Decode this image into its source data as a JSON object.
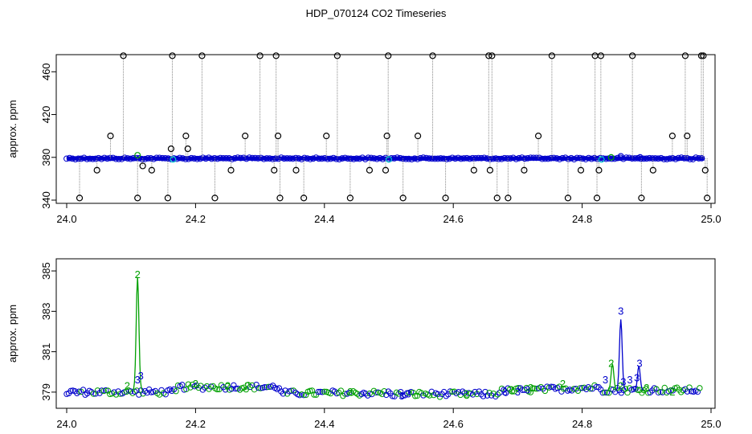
{
  "title": "HDP_070124  CO2 Timeseries",
  "chart_data": [
    {
      "type": "scatter",
      "title": "",
      "xlabel": "",
      "ylabel": "approx. ppm",
      "xlim": [
        24.0,
        25.0
      ],
      "ylim": [
        337,
        476
      ],
      "xticks": [
        24.0,
        24.2,
        24.4,
        24.6,
        24.8,
        25.0
      ],
      "xtick_labels": [
        "24.0",
        "24.2",
        "24.4",
        "24.6",
        "24.8",
        "25.0"
      ],
      "yticks": [
        340,
        380,
        420,
        460
      ],
      "ytick_labels": [
        "340",
        "380",
        "420",
        "460"
      ],
      "grid": false,
      "legend": "none",
      "baseline": 379,
      "colors": {
        "baseline": "#0000cc",
        "spike": "#000000",
        "sample": "#00a000",
        "cyan": "#00cccc",
        "trace": "#888888"
      },
      "series": [
        {
          "marker": "circle",
          "x": [
            24.02,
            24.047,
            24.068,
            24.088,
            24.11,
            24.118,
            24.132,
            24.157,
            24.162,
            24.164,
            24.185,
            24.188,
            24.21,
            24.23,
            24.255,
            24.277,
            24.3,
            24.322,
            24.325,
            24.328,
            24.331,
            24.356,
            24.368,
            24.403,
            24.42,
            24.44,
            24.47,
            24.495,
            24.497,
            24.499,
            24.522,
            24.545,
            24.568,
            24.588,
            24.632,
            24.655,
            24.657,
            24.66,
            24.668,
            24.685,
            24.71,
            24.732,
            24.753,
            24.778,
            24.798,
            24.82,
            24.823,
            24.826,
            24.829,
            24.878,
            24.892,
            24.91,
            24.94,
            24.96,
            24.963,
            24.985,
            24.988,
            24.991,
            24.994
          ],
          "y": [
            342,
            368,
            400,
            475,
            342,
            372,
            368,
            342,
            388,
            475,
            400,
            388,
            475,
            342,
            368,
            400,
            475,
            368,
            475,
            400,
            342,
            368,
            342,
            400,
            475,
            342,
            368,
            368,
            400,
            475,
            342,
            400,
            475,
            342,
            368,
            475,
            368,
            475,
            342,
            342,
            368,
            400,
            475,
            342,
            368,
            475,
            342,
            368,
            475,
            475,
            342,
            368,
            400,
            475,
            400,
            475,
            475,
            368,
            342
          ]
        }
      ]
    },
    {
      "type": "scatter",
      "title": "",
      "xlabel": "",
      "ylabel": "approx. ppm",
      "xlim": [
        24.0,
        25.0
      ],
      "ylim": [
        378.2,
        385.6
      ],
      "xticks": [
        24.0,
        24.2,
        24.4,
        24.6,
        24.8,
        25.0
      ],
      "xtick_labels": [
        "24.0",
        "24.2",
        "24.4",
        "24.6",
        "24.8",
        "25.0"
      ],
      "yticks": [
        379,
        381,
        383,
        385
      ],
      "ytick_labels": [
        "379",
        "381",
        "383",
        "385"
      ],
      "grid": false,
      "legend": "none",
      "point_labels": [
        "2",
        "3"
      ],
      "colors": {
        "series_2": "#00a000",
        "series_3": "#0000cc"
      },
      "series": [
        {
          "marker": "2",
          "x": [
            24.094,
            24.11,
            24.2,
            24.25,
            24.28,
            24.44,
            24.62,
            24.69,
            24.72,
            24.77,
            24.845,
            24.86,
            24.9,
            24.94
          ],
          "y": [
            379.3,
            384.8,
            379.4,
            379.3,
            379.3,
            379.0,
            378.9,
            379.1,
            379.2,
            379.4,
            380.4,
            379.3,
            379.2,
            379.0
          ]
        },
        {
          "marker": "3",
          "x": [
            24.11,
            24.115,
            24.52,
            24.53,
            24.68,
            24.7,
            24.715,
            24.836,
            24.86,
            24.864,
            24.874,
            24.885,
            24.889
          ],
          "y": [
            379.6,
            379.8,
            378.8,
            378.9,
            379.0,
            379.0,
            379.1,
            379.6,
            383.0,
            379.5,
            379.6,
            379.7,
            380.4
          ]
        }
      ]
    }
  ]
}
